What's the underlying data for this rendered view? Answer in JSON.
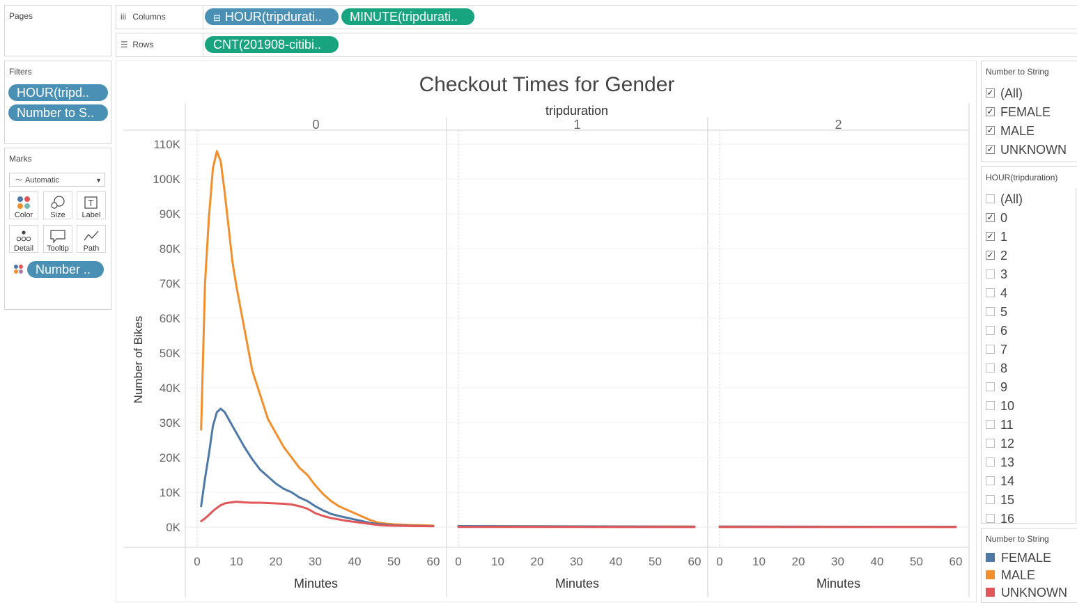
{
  "pages": {
    "title": "Pages"
  },
  "shelves": {
    "columns": {
      "label": "Columns",
      "pills": [
        "HOUR(tripdurati..",
        "MINUTE(tripdurati.."
      ]
    },
    "rows": {
      "label": "Rows",
      "pills": [
        "CNT(201908-citibi.."
      ]
    }
  },
  "filters": {
    "title": "Filters",
    "pills": [
      "HOUR(tripd..",
      "Number to S.."
    ]
  },
  "marks": {
    "title": "Marks",
    "mark_type": "Automatic",
    "buttons": [
      "Color",
      "Size",
      "Label",
      "Detail",
      "Tooltip",
      "Path"
    ],
    "color_pill": "Number .."
  },
  "gender_filter": {
    "title": "Number to String",
    "items": [
      {
        "label": "(All)",
        "checked": true
      },
      {
        "label": "FEMALE",
        "checked": true
      },
      {
        "label": "MALE",
        "checked": true
      },
      {
        "label": "UNKNOWN",
        "checked": true
      }
    ]
  },
  "hour_filter": {
    "title": "HOUR(tripduration)",
    "items": [
      {
        "label": "(All)",
        "checked": false
      },
      {
        "label": "0",
        "checked": true
      },
      {
        "label": "1",
        "checked": true
      },
      {
        "label": "2",
        "checked": true
      },
      {
        "label": "3",
        "checked": false
      },
      {
        "label": "4",
        "checked": false
      },
      {
        "label": "5",
        "checked": false
      },
      {
        "label": "6",
        "checked": false
      },
      {
        "label": "7",
        "checked": false
      },
      {
        "label": "8",
        "checked": false
      },
      {
        "label": "9",
        "checked": false
      },
      {
        "label": "10",
        "checked": false
      },
      {
        "label": "11",
        "checked": false
      },
      {
        "label": "12",
        "checked": false
      },
      {
        "label": "13",
        "checked": false
      },
      {
        "label": "14",
        "checked": false
      },
      {
        "label": "15",
        "checked": false
      },
      {
        "label": "16",
        "checked": false
      }
    ]
  },
  "legend": {
    "title": "Number to String",
    "items": [
      {
        "label": "FEMALE",
        "color": "#4e79a7"
      },
      {
        "label": "MALE",
        "color": "#f28e2b"
      },
      {
        "label": "UNKNOWN",
        "color": "#e15759"
      }
    ]
  },
  "chart_data": {
    "type": "line",
    "title": "Checkout Times for Gender",
    "column_header": "tripduration",
    "panels": [
      "0",
      "1",
      "2"
    ],
    "xlabel": "Minutes",
    "ylabel": "Number of Bikes",
    "xlim": [
      0,
      60
    ],
    "ylim": [
      0,
      110000
    ],
    "y_ticks": [
      0,
      10000,
      20000,
      30000,
      40000,
      50000,
      60000,
      70000,
      80000,
      90000,
      100000,
      110000
    ],
    "y_tick_labels": [
      "0K",
      "10K",
      "20K",
      "30K",
      "40K",
      "50K",
      "60K",
      "70K",
      "80K",
      "90K",
      "100K",
      "110K"
    ],
    "x_ticks": [
      0,
      10,
      20,
      30,
      40,
      50,
      60
    ],
    "x_tick_labels": [
      "0",
      "10",
      "20",
      "30",
      "40",
      "50",
      "60"
    ],
    "grid": true,
    "series": [
      {
        "name": "MALE",
        "color": "#f28e2b",
        "panels": [
          [
            [
              1,
              28000
            ],
            [
              2,
              70000
            ],
            [
              3,
              89000
            ],
            [
              4,
              103000
            ],
            [
              5,
              108000
            ],
            [
              6,
              105000
            ],
            [
              7,
              96000
            ],
            [
              8,
              86000
            ],
            [
              9,
              76000
            ],
            [
              10,
              69000
            ],
            [
              12,
              57000
            ],
            [
              14,
              45000
            ],
            [
              16,
              38000
            ],
            [
              18,
              31000
            ],
            [
              20,
              27000
            ],
            [
              22,
              23000
            ],
            [
              24,
              20000
            ],
            [
              26,
              17000
            ],
            [
              28,
              15000
            ],
            [
              30,
              12000
            ],
            [
              32,
              9500
            ],
            [
              34,
              7500
            ],
            [
              36,
              6000
            ],
            [
              38,
              5000
            ],
            [
              40,
              4000
            ],
            [
              42,
              3000
            ],
            [
              44,
              2000
            ],
            [
              46,
              1300
            ],
            [
              48,
              1000
            ],
            [
              50,
              800
            ],
            [
              54,
              600
            ],
            [
              58,
              500
            ],
            [
              60,
              400
            ]
          ],
          [
            [
              0,
              300
            ],
            [
              20,
              250
            ],
            [
              40,
              200
            ],
            [
              60,
              150
            ]
          ],
          [
            [
              0,
              150
            ],
            [
              20,
              120
            ],
            [
              40,
              100
            ],
            [
              60,
              80
            ]
          ]
        ]
      },
      {
        "name": "FEMALE",
        "color": "#4e79a7",
        "panels": [
          [
            [
              1,
              6000
            ],
            [
              2,
              14000
            ],
            [
              3,
              21000
            ],
            [
              4,
              29000
            ],
            [
              5,
              33000
            ],
            [
              6,
              34000
            ],
            [
              7,
              33000
            ],
            [
              8,
              31000
            ],
            [
              9,
              29000
            ],
            [
              10,
              27000
            ],
            [
              12,
              23000
            ],
            [
              14,
              19500
            ],
            [
              16,
              16500
            ],
            [
              18,
              14500
            ],
            [
              20,
              12500
            ],
            [
              22,
              11000
            ],
            [
              24,
              10000
            ],
            [
              26,
              8500
            ],
            [
              28,
              7500
            ],
            [
              30,
              6000
            ],
            [
              32,
              4800
            ],
            [
              34,
              3800
            ],
            [
              36,
              3200
            ],
            [
              38,
              2700
            ],
            [
              40,
              2200
            ],
            [
              42,
              1700
            ],
            [
              44,
              1200
            ],
            [
              46,
              900
            ],
            [
              48,
              700
            ],
            [
              50,
              500
            ],
            [
              54,
              400
            ],
            [
              58,
              300
            ],
            [
              60,
              300
            ]
          ],
          [
            [
              0,
              300
            ],
            [
              10,
              250
            ],
            [
              20,
              220
            ],
            [
              30,
              200
            ],
            [
              40,
              180
            ],
            [
              50,
              150
            ],
            [
              60,
              120
            ]
          ],
          [
            [
              0,
              150
            ],
            [
              10,
              130
            ],
            [
              20,
              120
            ],
            [
              30,
              110
            ],
            [
              40,
              100
            ],
            [
              50,
              90
            ],
            [
              60,
              80
            ]
          ]
        ]
      },
      {
        "name": "UNKNOWN",
        "color": "#e15759",
        "panels": [
          [
            [
              1,
              1700
            ],
            [
              2,
              2500
            ],
            [
              3,
              3500
            ],
            [
              4,
              4600
            ],
            [
              5,
              5500
            ],
            [
              6,
              6300
            ],
            [
              7,
              6800
            ],
            [
              8,
              7000
            ],
            [
              10,
              7300
            ],
            [
              12,
              7100
            ],
            [
              14,
              7000
            ],
            [
              16,
              7000
            ],
            [
              18,
              6900
            ],
            [
              20,
              6800
            ],
            [
              22,
              6700
            ],
            [
              24,
              6500
            ],
            [
              26,
              6000
            ],
            [
              28,
              5300
            ],
            [
              30,
              4000
            ],
            [
              32,
              3200
            ],
            [
              34,
              2600
            ],
            [
              36,
              2200
            ],
            [
              38,
              1800
            ],
            [
              40,
              1500
            ],
            [
              42,
              1200
            ],
            [
              44,
              900
            ],
            [
              46,
              600
            ],
            [
              48,
              450
            ],
            [
              50,
              400
            ],
            [
              55,
              300
            ],
            [
              60,
              250
            ]
          ],
          [
            [
              0,
              50
            ],
            [
              30,
              40
            ],
            [
              60,
              30
            ]
          ],
          [
            [
              0,
              30
            ],
            [
              30,
              20
            ],
            [
              60,
              20
            ]
          ]
        ]
      }
    ]
  }
}
